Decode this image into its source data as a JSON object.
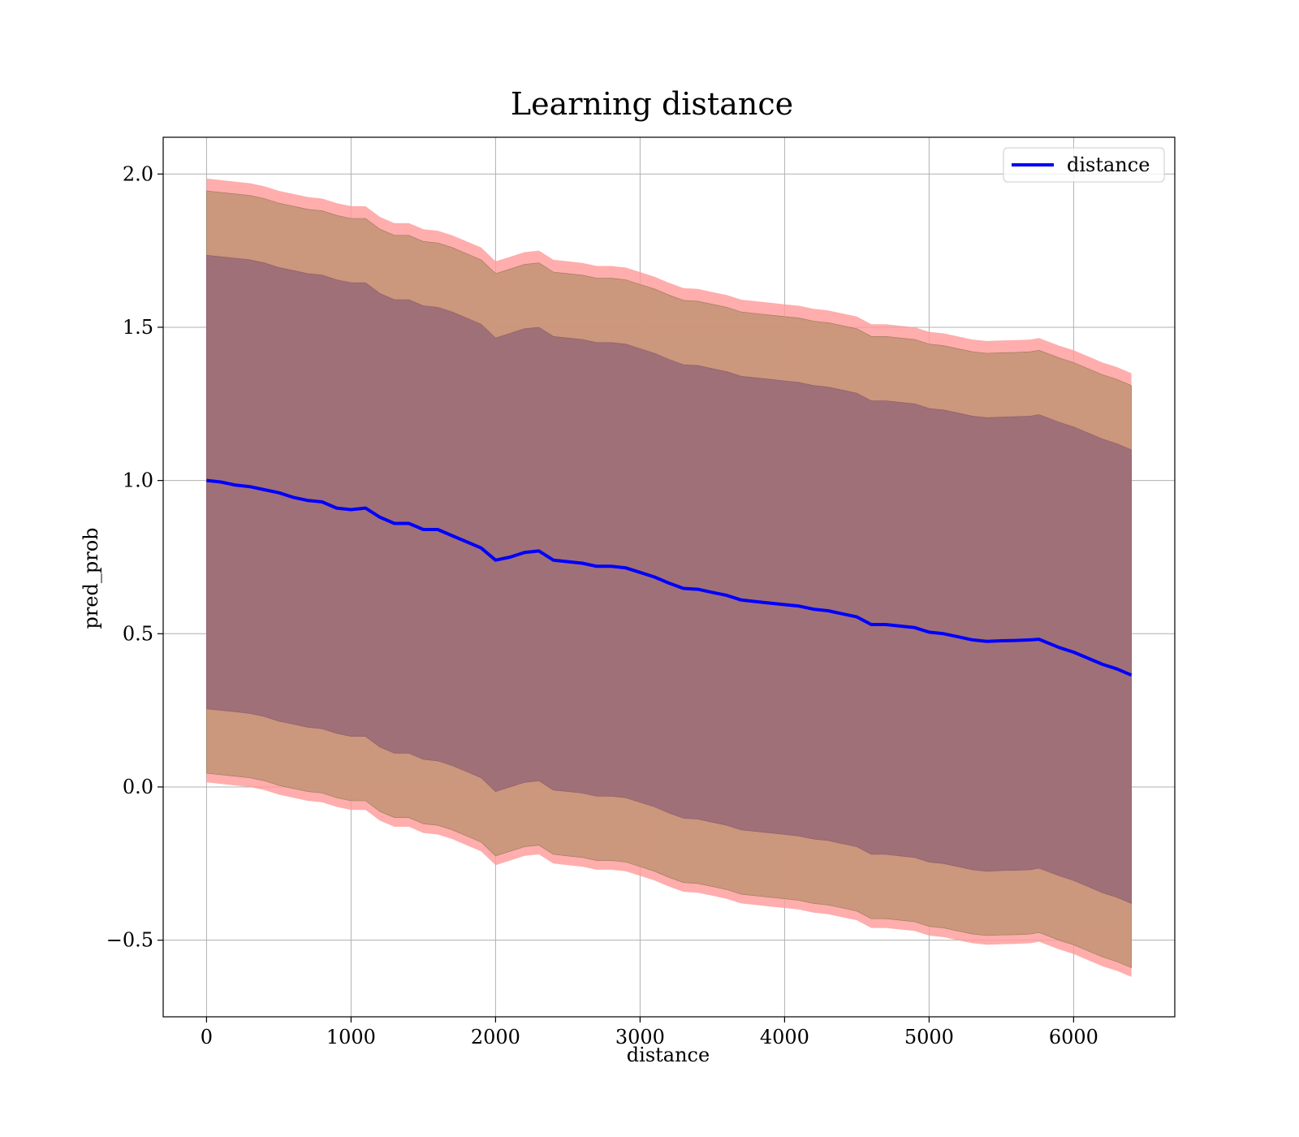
{
  "chart_data": {
    "type": "line",
    "title": "Learning distance",
    "xlabel": "distance",
    "ylabel": "pred_prob",
    "xlim": [
      -300,
      6700
    ],
    "ylim": [
      -0.75,
      2.12
    ],
    "xticks": [
      0,
      1000,
      2000,
      3000,
      4000,
      5000,
      6000
    ],
    "xtick_labels": [
      "0",
      "1000",
      "2000",
      "3000",
      "4000",
      "5000",
      "6000"
    ],
    "yticks": [
      -0.5,
      0.0,
      0.5,
      1.0,
      1.5,
      2.0
    ],
    "ytick_labels": [
      "−0.5",
      "0.0",
      "0.5",
      "1.0",
      "1.5",
      "2.0"
    ],
    "grid": true,
    "legend": {
      "position": "top-right",
      "entries": [
        "distance"
      ]
    },
    "colors": {
      "line": "#0000ff",
      "band_outer": "#ff9999",
      "band_middle": "#c8967a",
      "band_inner": "#a07078"
    },
    "x": [
      0,
      100,
      200,
      300,
      400,
      500,
      600,
      700,
      800,
      900,
      1000,
      1100,
      1200,
      1300,
      1400,
      1500,
      1600,
      1700,
      1800,
      1900,
      2000,
      2100,
      2200,
      2300,
      2400,
      2500,
      2600,
      2700,
      2800,
      2900,
      3000,
      3100,
      3200,
      3300,
      3400,
      3500,
      3600,
      3700,
      3800,
      3900,
      4000,
      4100,
      4200,
      4300,
      4400,
      4500,
      4600,
      4700,
      4800,
      4900,
      5000,
      5100,
      5200,
      5300,
      5400,
      5500,
      5600,
      5700,
      5760,
      5900,
      6000,
      6100,
      6200,
      6300,
      6400
    ],
    "series": [
      {
        "name": "distance",
        "values": [
          1.0,
          0.995,
          0.985,
          0.98,
          0.97,
          0.96,
          0.945,
          0.935,
          0.93,
          0.91,
          0.905,
          0.91,
          0.88,
          0.86,
          0.86,
          0.84,
          0.84,
          0.82,
          0.8,
          0.78,
          0.74,
          0.75,
          0.765,
          0.77,
          0.74,
          0.735,
          0.73,
          0.72,
          0.72,
          0.715,
          0.7,
          0.685,
          0.665,
          0.648,
          0.645,
          0.635,
          0.625,
          0.61,
          0.605,
          0.6,
          0.595,
          0.59,
          0.58,
          0.575,
          0.565,
          0.555,
          0.53,
          0.53,
          0.525,
          0.52,
          0.505,
          0.5,
          0.49,
          0.48,
          0.475,
          0.477,
          0.478,
          0.48,
          0.482,
          0.455,
          0.44,
          0.42,
          0.4,
          0.385,
          0.365
        ]
      }
    ],
    "bands": {
      "outer_upper": [
        1.985,
        1.98,
        1.975,
        1.97,
        1.96,
        1.945,
        1.935,
        1.925,
        1.92,
        1.905,
        1.895,
        1.895,
        1.86,
        1.84,
        1.84,
        1.82,
        1.815,
        1.8,
        1.78,
        1.76,
        1.715,
        1.73,
        1.745,
        1.75,
        1.72,
        1.715,
        1.71,
        1.7,
        1.7,
        1.695,
        1.68,
        1.665,
        1.645,
        1.628,
        1.625,
        1.615,
        1.605,
        1.59,
        1.585,
        1.58,
        1.575,
        1.57,
        1.56,
        1.555,
        1.545,
        1.535,
        1.51,
        1.51,
        1.505,
        1.5,
        1.485,
        1.48,
        1.47,
        1.46,
        1.455,
        1.457,
        1.458,
        1.46,
        1.465,
        1.44,
        1.425,
        1.405,
        1.385,
        1.37,
        1.35
      ],
      "middle_upper": [
        1.945,
        1.94,
        1.935,
        1.93,
        1.92,
        1.905,
        1.895,
        1.885,
        1.88,
        1.865,
        1.855,
        1.855,
        1.82,
        1.8,
        1.8,
        1.78,
        1.775,
        1.76,
        1.74,
        1.72,
        1.675,
        1.69,
        1.705,
        1.71,
        1.68,
        1.675,
        1.67,
        1.66,
        1.66,
        1.655,
        1.64,
        1.625,
        1.605,
        1.588,
        1.585,
        1.575,
        1.565,
        1.55,
        1.545,
        1.54,
        1.535,
        1.53,
        1.52,
        1.515,
        1.505,
        1.495,
        1.47,
        1.47,
        1.465,
        1.46,
        1.445,
        1.44,
        1.43,
        1.42,
        1.415,
        1.417,
        1.418,
        1.42,
        1.425,
        1.4,
        1.385,
        1.365,
        1.345,
        1.33,
        1.31
      ],
      "inner_upper": [
        1.735,
        1.73,
        1.725,
        1.72,
        1.71,
        1.695,
        1.685,
        1.675,
        1.67,
        1.655,
        1.645,
        1.645,
        1.61,
        1.59,
        1.59,
        1.57,
        1.565,
        1.55,
        1.53,
        1.51,
        1.465,
        1.48,
        1.495,
        1.5,
        1.47,
        1.465,
        1.46,
        1.45,
        1.45,
        1.445,
        1.43,
        1.415,
        1.395,
        1.378,
        1.375,
        1.365,
        1.355,
        1.34,
        1.335,
        1.33,
        1.325,
        1.32,
        1.31,
        1.305,
        1.295,
        1.285,
        1.26,
        1.26,
        1.255,
        1.25,
        1.235,
        1.23,
        1.22,
        1.21,
        1.205,
        1.207,
        1.208,
        1.21,
        1.215,
        1.19,
        1.175,
        1.155,
        1.135,
        1.12,
        1.1
      ],
      "inner_lower": [
        0.255,
        0.25,
        0.245,
        0.24,
        0.23,
        0.215,
        0.205,
        0.195,
        0.19,
        0.175,
        0.165,
        0.165,
        0.13,
        0.11,
        0.11,
        0.09,
        0.085,
        0.07,
        0.05,
        0.03,
        -0.015,
        0.0,
        0.015,
        0.02,
        -0.01,
        -0.015,
        -0.02,
        -0.03,
        -0.03,
        -0.035,
        -0.05,
        -0.065,
        -0.085,
        -0.102,
        -0.105,
        -0.115,
        -0.125,
        -0.14,
        -0.145,
        -0.15,
        -0.155,
        -0.16,
        -0.17,
        -0.175,
        -0.185,
        -0.195,
        -0.22,
        -0.22,
        -0.225,
        -0.23,
        -0.245,
        -0.25,
        -0.26,
        -0.27,
        -0.275,
        -0.273,
        -0.272,
        -0.27,
        -0.265,
        -0.29,
        -0.305,
        -0.325,
        -0.345,
        -0.36,
        -0.38
      ],
      "middle_lower": [
        0.045,
        0.04,
        0.035,
        0.03,
        0.02,
        0.005,
        -0.005,
        -0.015,
        -0.02,
        -0.035,
        -0.045,
        -0.045,
        -0.08,
        -0.1,
        -0.1,
        -0.12,
        -0.125,
        -0.14,
        -0.16,
        -0.18,
        -0.225,
        -0.21,
        -0.195,
        -0.19,
        -0.22,
        -0.225,
        -0.23,
        -0.24,
        -0.24,
        -0.245,
        -0.26,
        -0.275,
        -0.295,
        -0.312,
        -0.315,
        -0.325,
        -0.335,
        -0.35,
        -0.355,
        -0.36,
        -0.365,
        -0.37,
        -0.38,
        -0.385,
        -0.395,
        -0.405,
        -0.43,
        -0.43,
        -0.435,
        -0.44,
        -0.455,
        -0.46,
        -0.47,
        -0.48,
        -0.485,
        -0.483,
        -0.482,
        -0.48,
        -0.475,
        -0.5,
        -0.515,
        -0.535,
        -0.555,
        -0.57,
        -0.59
      ],
      "outer_lower": [
        0.015,
        0.01,
        0.005,
        0.0,
        -0.01,
        -0.025,
        -0.035,
        -0.045,
        -0.05,
        -0.065,
        -0.075,
        -0.075,
        -0.11,
        -0.13,
        -0.13,
        -0.15,
        -0.155,
        -0.17,
        -0.19,
        -0.21,
        -0.255,
        -0.24,
        -0.225,
        -0.22,
        -0.25,
        -0.255,
        -0.26,
        -0.27,
        -0.27,
        -0.275,
        -0.29,
        -0.305,
        -0.325,
        -0.342,
        -0.345,
        -0.355,
        -0.365,
        -0.38,
        -0.385,
        -0.39,
        -0.395,
        -0.4,
        -0.41,
        -0.415,
        -0.425,
        -0.435,
        -0.46,
        -0.46,
        -0.465,
        -0.47,
        -0.485,
        -0.49,
        -0.5,
        -0.51,
        -0.515,
        -0.513,
        -0.512,
        -0.51,
        -0.505,
        -0.53,
        -0.545,
        -0.565,
        -0.585,
        -0.6,
        -0.62
      ]
    }
  }
}
